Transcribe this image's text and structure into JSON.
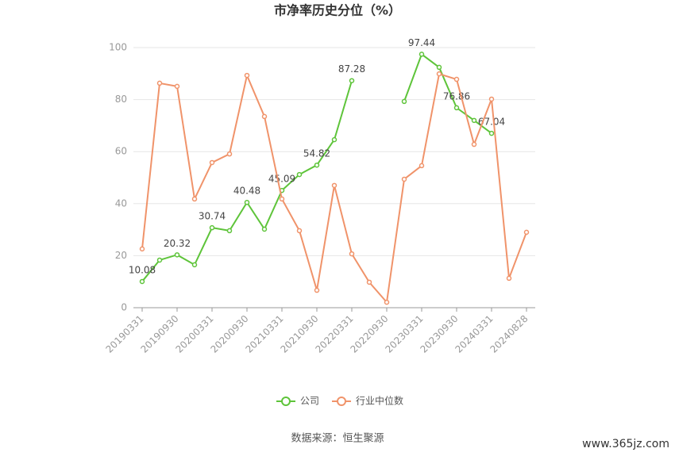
{
  "chart_data": {
    "type": "line",
    "title": "市净率历史分位（%）",
    "categories": [
      "20190331",
      null,
      "20190930",
      null,
      "20200331",
      null,
      "20200930",
      null,
      "20210331",
      null,
      "20210930",
      null,
      "20220331",
      null,
      "20220930",
      null,
      "20230331",
      null,
      "20230930",
      null,
      "20240331",
      null,
      "20240828"
    ],
    "series": [
      {
        "name": "公司",
        "color": "#5ec43a",
        "values": [
          10.08,
          18.3,
          20.32,
          16.5,
          30.74,
          29.6,
          40.48,
          30.2,
          45.09,
          51.2,
          54.82,
          64.6,
          87.28,
          null,
          null,
          79.3,
          97.44,
          92.4,
          76.86,
          72.0,
          67.04,
          null,
          null
        ],
        "value_labels": [
          "10.08",
          null,
          "20.32",
          null,
          "30.74",
          null,
          "40.48",
          null,
          "45.09",
          null,
          "54.82",
          null,
          "87.28",
          null,
          null,
          null,
          "97.44",
          null,
          "76.86",
          null,
          "67.04",
          null,
          null
        ]
      },
      {
        "name": "行业中位数",
        "color": "#f0936a",
        "values": [
          22.6,
          86.3,
          85.1,
          41.8,
          55.8,
          59.1,
          89.3,
          73.5,
          41.8,
          29.6,
          6.7,
          47.0,
          20.7,
          9.8,
          2.1,
          49.4,
          54.6,
          89.9,
          87.8,
          62.8,
          80.2,
          11.3,
          29.0
        ]
      }
    ],
    "ylim": [
      0,
      100
    ],
    "yticks": [
      0,
      20,
      40,
      60,
      80,
      100
    ],
    "grid": true,
    "legend": "bottom",
    "source": "数据来源：恒生聚源",
    "watermark": "www.365jz.com"
  }
}
